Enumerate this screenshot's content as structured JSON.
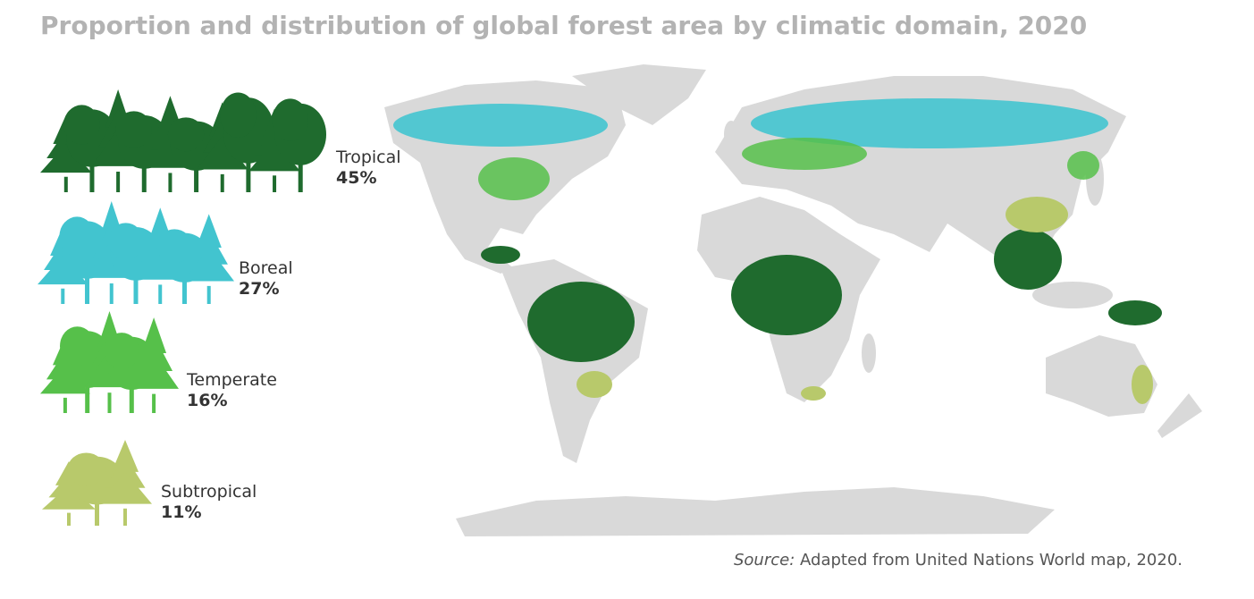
{
  "header": {
    "title": "Proportion and distribution of global forest area by climatic domain, 2020"
  },
  "legend": [
    {
      "label": "Tropical",
      "share": "45%",
      "color": "#1f6b2e"
    },
    {
      "label": "Boreal",
      "share": "27%",
      "color": "#42c4cf"
    },
    {
      "label": "Temperate",
      "share": "16%",
      "color": "#56c04a"
    },
    {
      "label": "Subtropical",
      "share": "11%",
      "color": "#b8c96b"
    }
  ],
  "source": {
    "prefix": "Source:",
    "text": "Adapted from United Nations World map, 2020."
  }
}
